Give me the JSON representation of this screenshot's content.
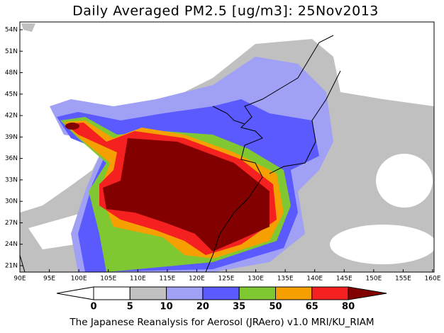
{
  "header": {
    "title": "Daily Averaged PM2.5 [ug/m3]: 25Nov2013"
  },
  "map": {
    "lat_labels": [
      "54N",
      "51N",
      "48N",
      "45N",
      "42N",
      "39N",
      "36N",
      "33N",
      "30N",
      "27N",
      "24N",
      "21N"
    ],
    "lon_labels": [
      "90E",
      "95E",
      "100E",
      "105E",
      "110E",
      "115E",
      "120E",
      "125E",
      "130E",
      "135E",
      "140E",
      "145E",
      "150E",
      "155E",
      "160E"
    ]
  },
  "colorbar": {
    "levels": [
      0,
      5,
      10,
      20,
      35,
      50,
      65,
      80
    ],
    "colors": [
      "#ffffff",
      "#ffffff",
      "#c0c0c0",
      "#a0a0f5",
      "#5a5aff",
      "#80c832",
      "#f5a000",
      "#f52020",
      "#820000"
    ]
  },
  "footer": {
    "text": "The Japanese Reanalysis for Aerosol (JRAero) v1.0 MRI/KU_RIAM"
  }
}
